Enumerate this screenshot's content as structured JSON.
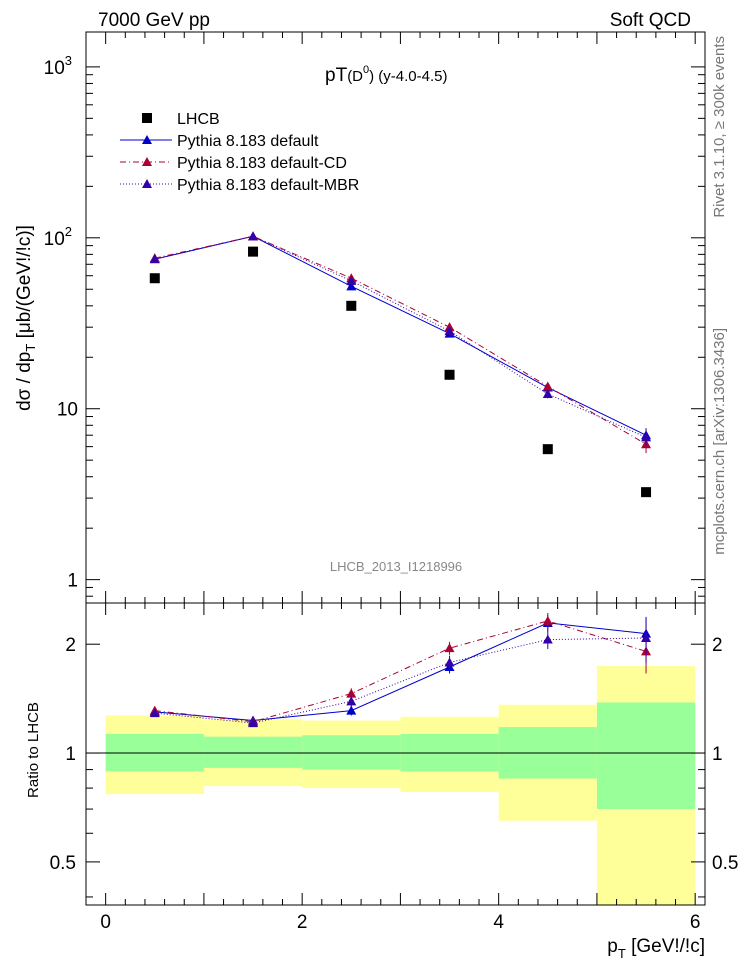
{
  "header": {
    "left": "7000 GeV pp",
    "right": "Soft QCD"
  },
  "side_labels": {
    "top": "Rivet 3.1.10, ≥ 300k events",
    "bottom": "mcplots.cern.ch [arXiv:1306.3436]"
  },
  "chart_data": {
    "type": "scatter",
    "title_main": "pT",
    "title_sub": "(D",
    "title_sup": "0",
    "title_rest": ") (y-4.0-4.5)",
    "analysis_label": "LHCB_2013_I1218996",
    "ylabel_main": "dσ / dp",
    "ylabel_sub": "T",
    "ylabel_unit": " [μb/(GeV!/!c)]",
    "xlabel_main": "p",
    "xlabel_sub": "T",
    "xlabel_unit": " [GeV!/!c]",
    "ratio_ylabel": "Ratio to LHCB",
    "xlim": [
      -0.2,
      6.1
    ],
    "main_ylim_log": [
      0.73,
      1600
    ],
    "ratio_ylim_log": [
      0.38,
      2.6
    ],
    "x_ticks": [
      "0",
      "2",
      "4",
      "6"
    ],
    "main_y_ticks": [
      "1",
      "10",
      "10^2",
      "10^3"
    ],
    "ratio_y_ticks": [
      "0.5",
      "1",
      "2"
    ],
    "bins": [
      {
        "x": 0.5,
        "lo": 0,
        "hi": 1
      },
      {
        "x": 1.5,
        "lo": 1,
        "hi": 2
      },
      {
        "x": 2.5,
        "lo": 2,
        "hi": 3
      },
      {
        "x": 3.5,
        "lo": 3,
        "hi": 4
      },
      {
        "x": 4.5,
        "lo": 4,
        "hi": 5
      },
      {
        "x": 5.5,
        "lo": 5,
        "hi": 6
      }
    ],
    "data": {
      "name": "LHCB",
      "values": [
        58,
        83,
        40,
        15.8,
        5.8,
        3.25
      ]
    },
    "series": [
      {
        "name": "Pythia 8.183 default",
        "color": "#0000cc",
        "dash": "",
        "values": [
          75,
          102,
          52,
          27.5,
          13.3,
          7.0
        ],
        "errors": [
          1.5,
          1.5,
          2,
          1.2,
          0.7,
          0.7
        ],
        "ratio": [
          1.3,
          1.23,
          1.31,
          1.73,
          2.29,
          2.14
        ],
        "ratio_err": [
          0.03,
          0.02,
          0.04,
          0.07,
          0.12,
          0.22
        ]
      },
      {
        "name": "Pythia 8.183 default-CD",
        "color": "#aa0033",
        "dash": "6,3,1,3",
        "values": [
          76,
          102,
          58,
          30,
          13.5,
          6.2
        ],
        "errors": [
          1.5,
          1.5,
          2,
          1.2,
          0.7,
          0.7
        ],
        "ratio": [
          1.31,
          1.22,
          1.46,
          1.95,
          2.32,
          1.91
        ],
        "ratio_err": [
          0.03,
          0.02,
          0.05,
          0.08,
          0.12,
          0.25
        ]
      },
      {
        "name": "Pythia 8.183 default-MBR",
        "color": "#3300aa",
        "dash": "1,2",
        "values": [
          75,
          102,
          56,
          28.5,
          12.2,
          6.8
        ],
        "errors": [
          1.5,
          1.5,
          2,
          1.2,
          0.7,
          0.7
        ],
        "ratio": [
          1.29,
          1.21,
          1.39,
          1.78,
          2.06,
          2.08
        ],
        "ratio_err": [
          0.03,
          0.02,
          0.05,
          0.08,
          0.12,
          0.3
        ]
      }
    ],
    "bands": {
      "green": [
        [
          0.89,
          1.13
        ],
        [
          0.91,
          1.11
        ],
        [
          0.9,
          1.12
        ],
        [
          0.89,
          1.13
        ],
        [
          0.85,
          1.18
        ],
        [
          0.7,
          1.38
        ]
      ],
      "yellow": [
        [
          0.77,
          1.27
        ],
        [
          0.81,
          1.24
        ],
        [
          0.8,
          1.23
        ],
        [
          0.78,
          1.26
        ],
        [
          0.65,
          1.36
        ],
        [
          0.38,
          1.74
        ]
      ]
    }
  },
  "colors": {
    "green": "#99ff99",
    "yellow": "#ffff99",
    "data": "#000000"
  }
}
